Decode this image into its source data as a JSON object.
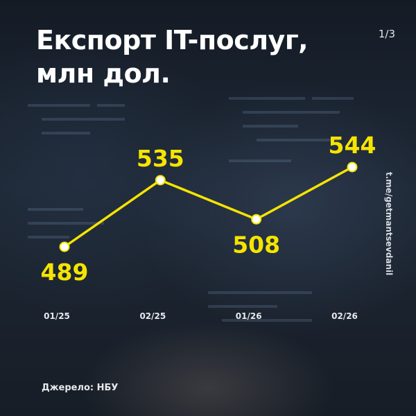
{
  "title_lines": [
    "Експорт IT-послуг,",
    "млн дол."
  ],
  "page_indicator": "1/3",
  "handle": "t.me/getmantsevdanil",
  "source": "Джерело: НБУ",
  "colors": {
    "accent": "#f5e400",
    "text": "#ffffff",
    "background": "#1b2330"
  },
  "chart_data": {
    "type": "line",
    "title": "Експорт IT-послуг, млн дол.",
    "categories": [
      "01/25",
      "02/25",
      "01/26",
      "02/26"
    ],
    "series": [
      {
        "values": [
          489,
          535,
          508,
          544
        ]
      }
    ],
    "grid": false,
    "legend": "none"
  }
}
